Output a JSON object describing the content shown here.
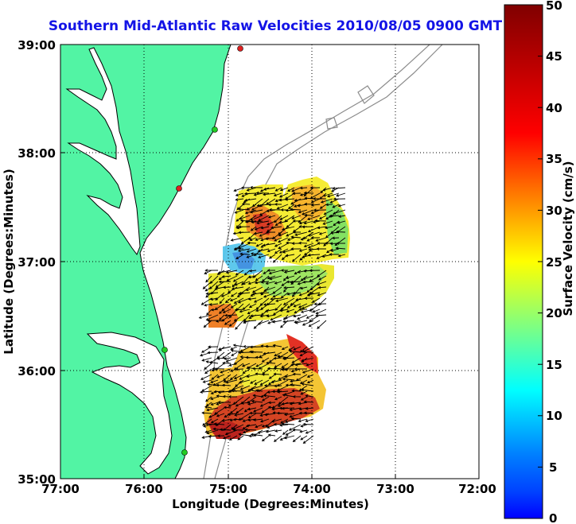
{
  "title": "Southern Mid-Atlantic Raw Velocities 2010/08/05 0900 GMT",
  "axes": {
    "xlabel": "Longitude (Degrees:Minutes)",
    "ylabel": "Latitude (Degrees:Minutes)",
    "x_ticks": [
      "77:00",
      "76:00",
      "75:00",
      "74:00",
      "73:00",
      "72:00"
    ],
    "y_ticks": [
      "39:00",
      "38:00",
      "37:00",
      "36:00",
      "35:00"
    ],
    "x_range_deg": [
      -77,
      -72
    ],
    "y_range_deg": [
      35,
      39
    ],
    "grid": "dotted"
  },
  "colorbar": {
    "label": "Surface Velocity (cm/s)",
    "ticks": [
      "50",
      "45",
      "40",
      "35",
      "30",
      "25",
      "20",
      "15",
      "10",
      "5",
      "0"
    ],
    "range": [
      0,
      50
    ],
    "colormap": "jet"
  },
  "colors": {
    "land": "#52f4a4",
    "coastline": "#000000",
    "bathymetry": "#8c8c8c",
    "title": "#1414e6",
    "station_green": "#22cc22",
    "station_red": "#e02020"
  },
  "stations": [
    {
      "color": "red"
    },
    {
      "color": "green"
    },
    {
      "color": "red"
    },
    {
      "color": "green"
    },
    {
      "color": "green"
    }
  ]
}
